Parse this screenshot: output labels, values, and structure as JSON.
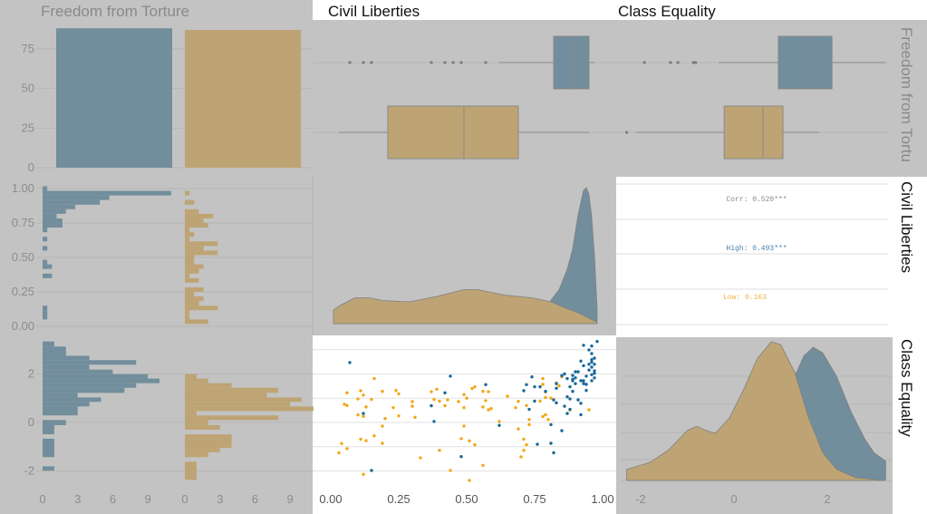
{
  "colors": {
    "panel_bg": "#c3c3c3",
    "high_fill": "#728e9c",
    "low_fill": "#bea474",
    "high_point": "#17689a",
    "low_point": "#f2a612",
    "grid": "#b6b6b6"
  },
  "strip_labels": {
    "top": [
      "Freedom from Torture",
      "Civil Liberties",
      "Class Equality"
    ],
    "right": [
      "Freedom from Tortu",
      "Civil Liberties",
      "Class Equality"
    ]
  },
  "chart_data": {
    "type": "pairs",
    "groups": [
      "High",
      "Low"
    ],
    "variables": [
      "Freedom from Torture",
      "Civil Liberties",
      "Class Equality"
    ],
    "axis_ticks": {
      "torture_count_y": [
        "0",
        "25",
        "50",
        "75"
      ],
      "civil_y": [
        "0.00",
        "0.25",
        "0.50",
        "0.75",
        "1.00"
      ],
      "class_y": [
        "-2",
        "0",
        "2"
      ],
      "count_x": [
        "0",
        "3",
        "6",
        "9"
      ],
      "civil_x": [
        "0.00",
        "0.25",
        "0.50",
        "0.75",
        "1.00"
      ],
      "class_x": [
        "-2",
        "0",
        "2"
      ]
    },
    "torture_bar": {
      "categories": [
        "High",
        "Low"
      ],
      "values": [
        88,
        87
      ]
    },
    "boxplots": {
      "civil": [
        {
          "group": "High",
          "lower": 0.63,
          "q1": 0.83,
          "median": 0.91,
          "q3": 0.96,
          "upper": 0.98,
          "outliers": [
            0.08,
            0.13,
            0.16,
            0.38,
            0.43,
            0.46,
            0.49,
            0.58
          ]
        },
        {
          "group": "Low",
          "lower": 0.04,
          "q1": 0.22,
          "median": 0.5,
          "q3": 0.7,
          "upper": 0.96,
          "outliers": []
        }
      ],
      "class": [
        {
          "group": "High",
          "lower": -0.33,
          "q1": 0.95,
          "median": 1.65,
          "q3": 2.1,
          "upper": 3.24,
          "outliers": [
            -1.92,
            -1.36,
            -1.2,
            -0.87,
            -0.82
          ]
        },
        {
          "group": "Low",
          "lower": -2.1,
          "q1": -0.21,
          "median": 0.62,
          "q3": 1.05,
          "upper": 1.83,
          "outliers": [
            -2.3
          ]
        }
      ]
    },
    "civil_hist": {
      "High": [
        [
          0.983,
          1.017,
          0.4
        ],
        [
          0.95,
          0.983,
          11
        ],
        [
          0.917,
          0.95,
          5.7
        ],
        [
          0.883,
          0.917,
          4.9
        ],
        [
          0.85,
          0.883,
          2.8
        ],
        [
          0.817,
          0.85,
          2
        ],
        [
          0.783,
          0.817,
          1.2
        ],
        [
          0.75,
          0.783,
          1.7
        ],
        [
          0.717,
          0.75,
          1.7
        ],
        [
          0.683,
          0.717,
          0.4
        ],
        [
          0.617,
          0.65,
          0.4
        ],
        [
          0.55,
          0.583,
          0.4
        ],
        [
          0.45,
          0.483,
          0.4
        ],
        [
          0.417,
          0.45,
          0.8
        ],
        [
          0.35,
          0.383,
          0.8
        ],
        [
          0.117,
          0.15,
          0.4
        ],
        [
          0.083,
          0.117,
          0.4
        ],
        [
          0.05,
          0.083,
          0.4
        ]
      ],
      "Low": [
        [
          0.95,
          0.983,
          0.4
        ],
        [
          0.883,
          0.917,
          0.8
        ],
        [
          0.817,
          0.85,
          1.2
        ],
        [
          0.783,
          0.817,
          2.4
        ],
        [
          0.75,
          0.783,
          1.6
        ],
        [
          0.717,
          0.75,
          2
        ],
        [
          0.683,
          0.717,
          0.4
        ],
        [
          0.65,
          0.683,
          0.8
        ],
        [
          0.617,
          0.65,
          0.4
        ],
        [
          0.583,
          0.617,
          2.8
        ],
        [
          0.55,
          0.583,
          1.6
        ],
        [
          0.517,
          0.55,
          2.8
        ],
        [
          0.483,
          0.517,
          0.8
        ],
        [
          0.45,
          0.483,
          0.8
        ],
        [
          0.417,
          0.45,
          1.6
        ],
        [
          0.383,
          0.417,
          1.2
        ],
        [
          0.35,
          0.383,
          0.4
        ],
        [
          0.317,
          0.35,
          1.2
        ],
        [
          0.25,
          0.283,
          1.6
        ],
        [
          0.217,
          0.25,
          0.8
        ],
        [
          0.183,
          0.217,
          1.6
        ],
        [
          0.15,
          0.183,
          1.2
        ],
        [
          0.117,
          0.15,
          2.8
        ],
        [
          0.083,
          0.117,
          0.4
        ],
        [
          0.05,
          0.083,
          0.4
        ],
        [
          0.017,
          0.05,
          2
        ]
      ]
    },
    "class_hist": {
      "High": [
        [
          3.13,
          3.34,
          1
        ],
        [
          2.75,
          3.13,
          2
        ],
        [
          2.57,
          2.75,
          4
        ],
        [
          2.38,
          2.57,
          8
        ],
        [
          2.18,
          2.38,
          4
        ],
        [
          1.99,
          2.18,
          6
        ],
        [
          1.81,
          1.99,
          9
        ],
        [
          1.62,
          1.81,
          10
        ],
        [
          1.43,
          1.62,
          8
        ],
        [
          1.22,
          1.43,
          7
        ],
        [
          1.03,
          1.22,
          3
        ],
        [
          0.85,
          1.03,
          5
        ],
        [
          0.66,
          0.85,
          4
        ],
        [
          0.29,
          0.66,
          3
        ],
        [
          -0.11,
          0.1,
          2
        ],
        [
          -0.49,
          -0.11,
          1
        ],
        [
          -1.43,
          -0.67,
          1
        ],
        [
          -1.99,
          -1.81,
          1
        ]
      ],
      "Low": [
        [
          1.81,
          1.99,
          1
        ],
        [
          1.62,
          1.81,
          2
        ],
        [
          1.43,
          1.62,
          4
        ],
        [
          1.22,
          1.43,
          8
        ],
        [
          1.03,
          1.22,
          7
        ],
        [
          0.85,
          1.03,
          10
        ],
        [
          0.66,
          0.85,
          9
        ],
        [
          0.47,
          0.66,
          11
        ],
        [
          0.29,
          0.47,
          1
        ],
        [
          0.1,
          0.29,
          8
        ],
        [
          -0.11,
          0.1,
          2
        ],
        [
          -0.3,
          -0.11,
          3
        ],
        [
          -0.67,
          -0.49,
          4
        ],
        [
          -1.05,
          -0.67,
          4
        ],
        [
          -1.23,
          -1.05,
          3
        ],
        [
          -1.43,
          -1.23,
          2
        ],
        [
          -2.37,
          -1.62,
          1
        ]
      ]
    },
    "civil_density": {
      "High": [
        [
          0.02,
          0
        ],
        [
          0.6,
          0.01
        ],
        [
          0.75,
          0.05
        ],
        [
          0.8,
          0.12
        ],
        [
          0.85,
          0.25
        ],
        [
          0.88,
          0.4
        ],
        [
          0.9,
          0.55
        ],
        [
          0.92,
          0.8
        ],
        [
          0.94,
          0.98
        ],
        [
          0.95,
          1.0
        ],
        [
          0.96,
          0.95
        ],
        [
          0.97,
          0.78
        ],
        [
          0.98,
          0.5
        ],
        [
          0.99,
          0.1
        ]
      ],
      "Low": [
        [
          0.02,
          0.1
        ],
        [
          0.05,
          0.14
        ],
        [
          0.1,
          0.19
        ],
        [
          0.15,
          0.19
        ],
        [
          0.2,
          0.17
        ],
        [
          0.3,
          0.16
        ],
        [
          0.4,
          0.2
        ],
        [
          0.5,
          0.25
        ],
        [
          0.55,
          0.25
        ],
        [
          0.65,
          0.21
        ],
        [
          0.75,
          0.19
        ],
        [
          0.82,
          0.16
        ],
        [
          0.88,
          0.11
        ],
        [
          0.93,
          0.07
        ],
        [
          0.97,
          0.03
        ],
        [
          0.99,
          0.01
        ]
      ]
    },
    "class_density": {
      "High": [
        [
          -2.3,
          0
        ],
        [
          0.5,
          0.02
        ],
        [
          1.0,
          0.3
        ],
        [
          1.3,
          0.75
        ],
        [
          1.5,
          0.9
        ],
        [
          1.7,
          0.96
        ],
        [
          1.9,
          0.92
        ],
        [
          2.2,
          0.75
        ],
        [
          2.5,
          0.5
        ],
        [
          2.8,
          0.3
        ],
        [
          3.0,
          0.2
        ],
        [
          3.25,
          0.14
        ]
      ],
      "Low": [
        [
          -2.3,
          0.08
        ],
        [
          -1.8,
          0.13
        ],
        [
          -1.4,
          0.22
        ],
        [
          -1.0,
          0.36
        ],
        [
          -0.8,
          0.39
        ],
        [
          -0.6,
          0.36
        ],
        [
          -0.4,
          0.34
        ],
        [
          -0.1,
          0.45
        ],
        [
          0.2,
          0.65
        ],
        [
          0.5,
          0.88
        ],
        [
          0.8,
          1.0
        ],
        [
          1.0,
          0.98
        ],
        [
          1.3,
          0.78
        ],
        [
          1.6,
          0.45
        ],
        [
          1.9,
          0.2
        ],
        [
          2.2,
          0.08
        ],
        [
          2.6,
          0.02
        ],
        [
          3.25,
          0
        ]
      ]
    },
    "correlation": {
      "overall": "Corr: 0.520***",
      "high": "High: 0.493***",
      "low": "Low: 0.163"
    },
    "scatter": {
      "x": "Civil Liberties",
      "y": "Class Equality",
      "High": [
        [
          0.08,
          2.47
        ],
        [
          0.45,
          1.91
        ],
        [
          0.58,
          1.56
        ],
        [
          0.43,
          1.22
        ],
        [
          0.38,
          0.69
        ],
        [
          0.13,
          0.37
        ],
        [
          0.39,
          0.04
        ],
        [
          0.63,
          -0.12
        ],
        [
          0.49,
          -1.41
        ],
        [
          0.16,
          -1.98
        ],
        [
          0.75,
          1.88
        ],
        [
          0.73,
          1.56
        ],
        [
          0.72,
          1.31
        ],
        [
          0.76,
          1.47
        ],
        [
          0.78,
          1.47
        ],
        [
          0.8,
          1.28
        ],
        [
          0.76,
          0.88
        ],
        [
          0.74,
          0.54
        ],
        [
          0.83,
          0.93
        ],
        [
          0.84,
          0.81
        ],
        [
          0.87,
          0.67
        ],
        [
          0.88,
          0.37
        ],
        [
          0.86,
          -0.34
        ],
        [
          0.82,
          -0.09
        ],
        [
          0.82,
          -0.86
        ],
        [
          0.83,
          -1.25
        ],
        [
          0.77,
          -0.9
        ],
        [
          0.93,
          0.32
        ],
        [
          0.89,
          0.54
        ],
        [
          0.93,
          0.79
        ],
        [
          0.92,
          0.93
        ],
        [
          0.88,
          1.06
        ],
        [
          0.89,
          0.97
        ],
        [
          0.9,
          1.28
        ],
        [
          0.84,
          1.41
        ],
        [
          0.84,
          1.6
        ],
        [
          0.86,
          1.93
        ],
        [
          0.87,
          2.0
        ],
        [
          0.88,
          1.81
        ],
        [
          0.9,
          1.72
        ],
        [
          0.91,
          2.09
        ],
        [
          0.91,
          1.84
        ],
        [
          0.93,
          1.72
        ],
        [
          0.94,
          1.6
        ],
        [
          0.92,
          2.09
        ],
        [
          0.93,
          2.53
        ],
        [
          0.94,
          2.34
        ],
        [
          0.95,
          1.32
        ],
        [
          0.95,
          1.57
        ],
        [
          0.97,
          1.72
        ],
        [
          0.95,
          1.91
        ],
        [
          0.97,
          1.97
        ],
        [
          0.98,
          2.03
        ],
        [
          0.98,
          1.84
        ],
        [
          0.96,
          2.16
        ],
        [
          0.97,
          2.28
        ],
        [
          0.98,
          2.4
        ],
        [
          0.97,
          2.59
        ],
        [
          0.98,
          2.65
        ],
        [
          0.97,
          2.84
        ],
        [
          0.96,
          2.99
        ],
        [
          0.97,
          3.15
        ],
        [
          0.94,
          3.18
        ],
        [
          0.99,
          3.34
        ],
        [
          0.97,
          2.49
        ],
        [
          0.96,
          2.4
        ],
        [
          0.98,
          2.13
        ],
        [
          0.94,
          1.72
        ],
        [
          0.9,
          1.94
        ],
        [
          0.89,
          1.47
        ],
        [
          0.91,
          1.6
        ],
        [
          0.9,
          1.78
        ]
      ],
      "Low": [
        [
          0.17,
          1.81
        ],
        [
          0.07,
          1.22
        ],
        [
          0.12,
          1.31
        ],
        [
          0.13,
          1.13
        ],
        [
          0.11,
          0.97
        ],
        [
          0.06,
          0.75
        ],
        [
          0.07,
          0.7
        ],
        [
          0.16,
          0.95
        ],
        [
          0.14,
          0.64
        ],
        [
          0.11,
          0.31
        ],
        [
          0.13,
          0.25
        ],
        [
          0.2,
          1.28
        ],
        [
          0.25,
          1.32
        ],
        [
          0.26,
          1.18
        ],
        [
          0.24,
          0.61
        ],
        [
          0.26,
          0.27
        ],
        [
          0.21,
          0.16
        ],
        [
          0.2,
          -0.15
        ],
        [
          0.17,
          -0.55
        ],
        [
          0.2,
          -0.86
        ],
        [
          0.12,
          -0.69
        ],
        [
          0.14,
          -0.75
        ],
        [
          0.05,
          -0.87
        ],
        [
          0.07,
          -1.08
        ],
        [
          0.04,
          -1.25
        ],
        [
          0.13,
          -2.14
        ],
        [
          0.31,
          0.86
        ],
        [
          0.31,
          0.67
        ],
        [
          0.32,
          0.21
        ],
        [
          0.34,
          -1.46
        ],
        [
          0.38,
          1.27
        ],
        [
          0.4,
          1.37
        ],
        [
          0.39,
          0.95
        ],
        [
          0.41,
          0.88
        ],
        [
          0.44,
          0.93
        ],
        [
          0.43,
          0.69
        ],
        [
          0.38,
          0.69
        ],
        [
          0.41,
          -1.15
        ],
        [
          0.45,
          -1.98
        ],
        [
          0.48,
          0.86
        ],
        [
          0.5,
          1.15
        ],
        [
          0.51,
          1.0
        ],
        [
          0.5,
          0.61
        ],
        [
          0.5,
          -0.15
        ],
        [
          0.49,
          -0.67
        ],
        [
          0.52,
          -0.76
        ],
        [
          0.54,
          -0.92
        ],
        [
          0.52,
          -2.39
        ],
        [
          0.57,
          -1.77
        ],
        [
          0.53,
          1.4
        ],
        [
          0.54,
          1.47
        ],
        [
          0.57,
          1.28
        ],
        [
          0.59,
          1.27
        ],
        [
          0.58,
          0.9
        ],
        [
          0.57,
          0.64
        ],
        [
          0.59,
          0.52
        ],
        [
          0.6,
          0.57
        ],
        [
          0.66,
          1.08
        ],
        [
          0.63,
          0.04
        ],
        [
          0.69,
          0.61
        ],
        [
          0.7,
          0.87
        ],
        [
          0.73,
          0.7
        ],
        [
          0.7,
          -0.27
        ],
        [
          0.74,
          0.12
        ],
        [
          0.74,
          -0.09
        ],
        [
          0.72,
          -0.69
        ],
        [
          0.73,
          -0.92
        ],
        [
          0.72,
          -1.15
        ],
        [
          0.71,
          -1.42
        ],
        [
          0.79,
          1.81
        ],
        [
          0.79,
          1.57
        ],
        [
          0.8,
          1.26
        ],
        [
          0.8,
          1.03
        ],
        [
          0.78,
          0.88
        ],
        [
          0.82,
          1.0
        ],
        [
          0.8,
          0.32
        ],
        [
          0.79,
          0.24
        ],
        [
          0.81,
          0.12
        ],
        [
          0.84,
          1.63
        ],
        [
          0.85,
          1.51
        ],
        [
          0.86,
          1.88
        ],
        [
          0.89,
          0.51
        ],
        [
          0.96,
          0.52
        ]
      ]
    }
  }
}
